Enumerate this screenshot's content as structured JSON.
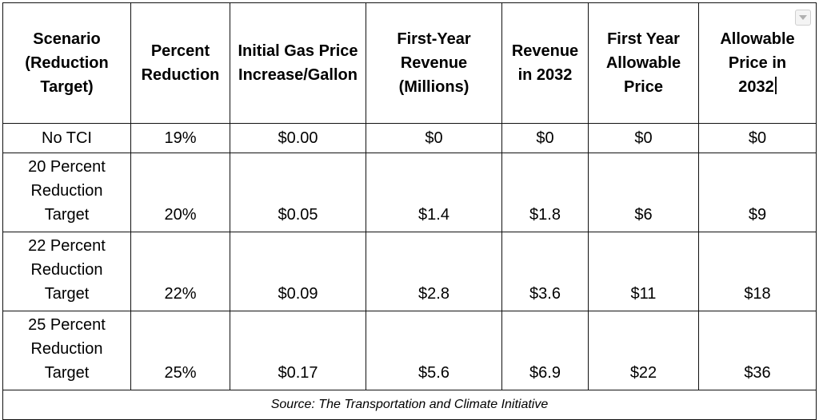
{
  "table": {
    "headers": [
      "Scenario\n(Reduction\nTarget)",
      "Percent\nReduction",
      "Initial Gas Price\nIncrease/Gallon",
      "First-Year\nRevenue\n(Millions)",
      "Revenue\nin 2032",
      "First Year\nAllowable\nPrice",
      "Allowable\nPrice in\n2032"
    ],
    "rows": [
      [
        "No TCI",
        "19%",
        "$0.00",
        "$0",
        "$0",
        "$0",
        "$0"
      ],
      [
        "20 Percent\nReduction\nTarget",
        "20%",
        "$0.05",
        "$1.4",
        "$1.8",
        "$6",
        "$9"
      ],
      [
        "22 Percent\nReduction\nTarget",
        "22%",
        "$0.09",
        "$2.8",
        "$3.6",
        "$11",
        "$18"
      ],
      [
        "25 Percent\nReduction\nTarget",
        "25%",
        "$0.17",
        "$5.6",
        "$6.9",
        "$22",
        "$36"
      ]
    ],
    "source": "Source: The Transportation and Climate Initiative"
  },
  "icons": {
    "dropdown": "chevron-down-icon"
  }
}
